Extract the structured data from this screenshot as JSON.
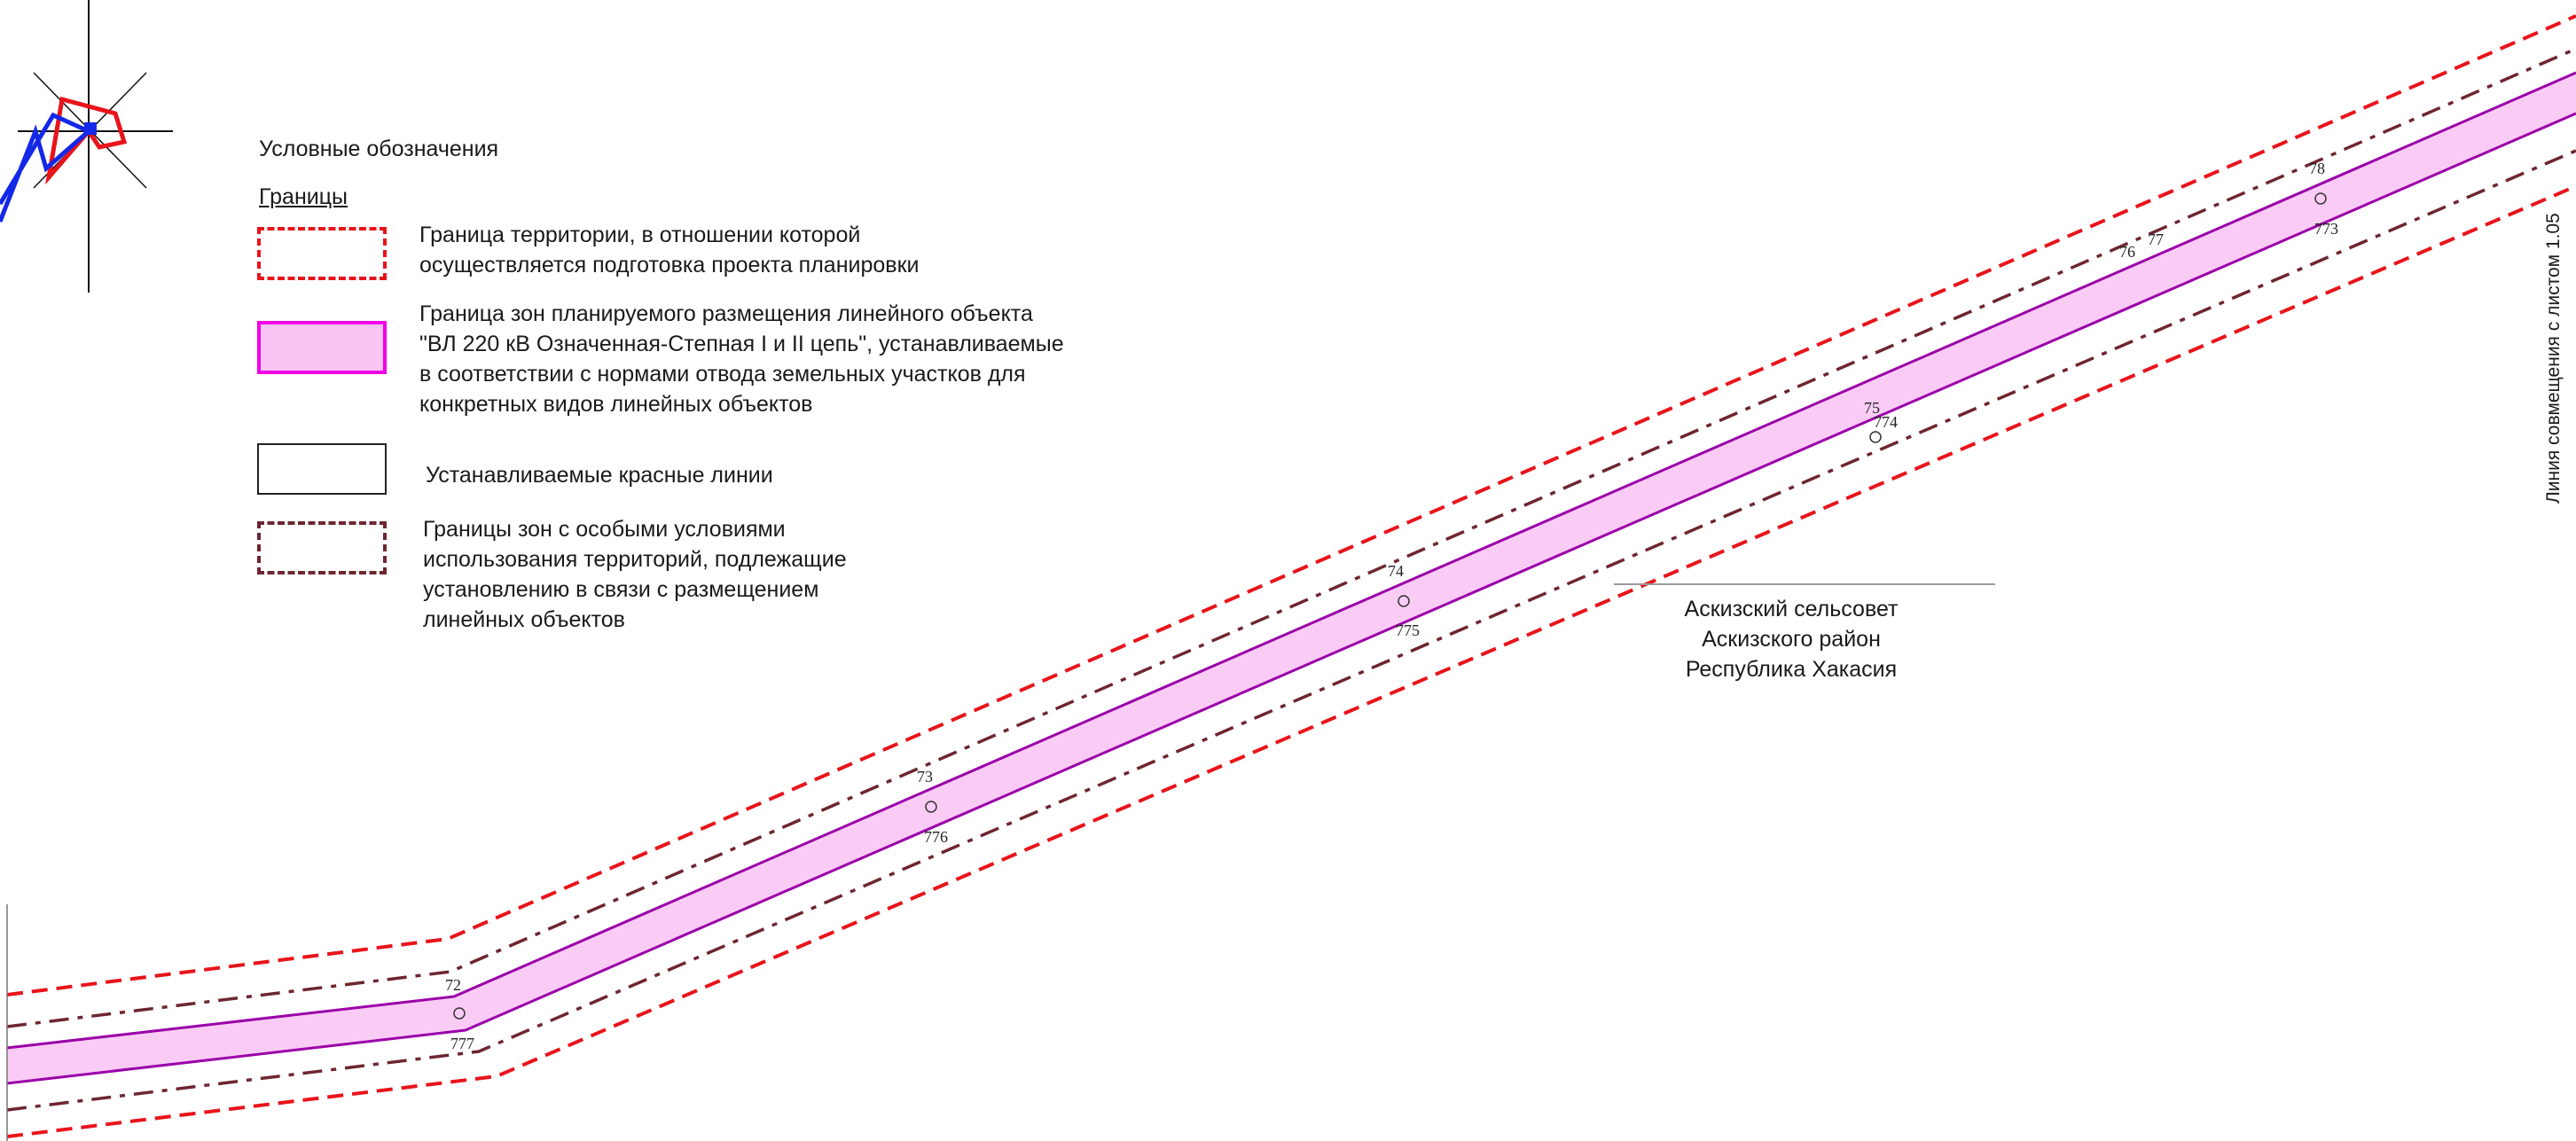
{
  "legend": {
    "title": "Условные обозначения",
    "section_title": "Границы",
    "items": [
      {
        "text": "Граница территории, в отношении которой\nосуществляется подготовка проекта планировки",
        "color": "#e8141b"
      },
      {
        "text": "Граница зон планируемого размещения линейного объекта\n\"ВЛ 220 кВ Означенная-Степная I и II цепь\",  устанавливаемые\nв соответствии с нормами отвода земельных участков  для\nконкретных видов линейных объектов",
        "color": "#f000e8"
      },
      {
        "text": "Устанавливаемые красные линии",
        "color": "#222222"
      },
      {
        "text": "Границы зон с особыми условиями\nиспользования территорий, подлежащие\nустановлению в связи с размещением\nлинейных объектов",
        "color": "#6e2630"
      }
    ]
  },
  "place": {
    "line1": "Аскизский сельсовет",
    "line2": "Аскизского район",
    "line3": "Республика Хакасия"
  },
  "sheet_note": "Линия совмещения с листом 1.05",
  "towers": {
    "t72": "72",
    "t73": "73",
    "t74": "74",
    "t75": "75",
    "t76": "76",
    "t77": "77",
    "t78": "78",
    "p777": "777",
    "p776": "776",
    "p775": "775",
    "p774": "774",
    "p773": "773"
  },
  "colors": {
    "project_boundary": "#e8141b",
    "corridor_fill": "#f9c6f4",
    "corridor_line": "#9a00a8",
    "special_zone": "#6e2630",
    "compass_red": "#e8141b",
    "compass_blue": "#1428e8"
  }
}
